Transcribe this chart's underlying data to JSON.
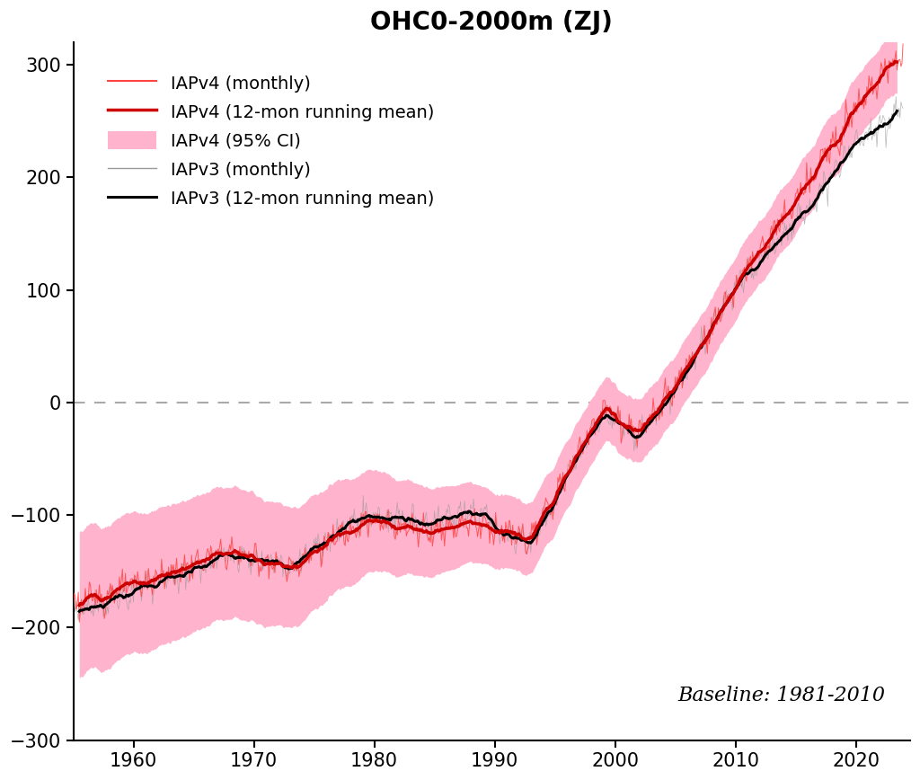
{
  "title": "OHC0-2000m (ZJ)",
  "baseline_text": "Baseline: 1981-2010",
  "ylim": [
    -300,
    320
  ],
  "xlim": [
    1955,
    2024.5
  ],
  "yticks": [
    -300,
    -200,
    -100,
    0,
    100,
    200,
    300
  ],
  "xticks": [
    1960,
    1970,
    1980,
    1990,
    2000,
    2010,
    2020
  ],
  "legend_entries": [
    "IAPv4 (monthly)",
    "IAPv4 (12-mon running mean)",
    "IAPv4 (95% CI)",
    "IAPv3 (monthly)",
    "IAPv3 (12-mon running mean)"
  ],
  "colors": {
    "v4_monthly": "#ff4444",
    "v4_running": "#cc0000",
    "v4_ci": "#ffb3cc",
    "v3_monthly": "#999999",
    "v3_running": "#000000",
    "zero_line": "#aaaaaa",
    "background": "#ffffff"
  },
  "title_fontsize": 20,
  "tick_fontsize": 15,
  "legend_fontsize": 14,
  "baseline_fontsize": 16
}
